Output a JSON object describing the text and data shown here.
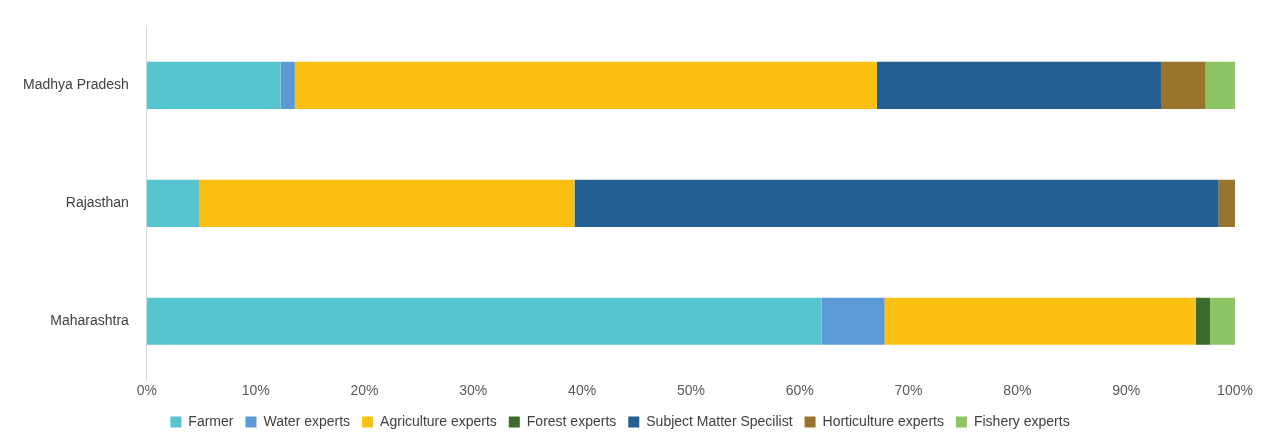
{
  "chart_data": {
    "type": "bar",
    "orientation": "horizontal",
    "stacked": true,
    "categories": [
      "Madhya Pradesh",
      "Rajasthan",
      "Maharashtra"
    ],
    "series": [
      {
        "name": "Farmer",
        "color": "#56c5d0",
        "values": [
          12.3,
          4.8,
          62.0
        ]
      },
      {
        "name": "Water experts",
        "color": "#5b9bd5",
        "values": [
          1.3,
          0,
          5.8
        ]
      },
      {
        "name": "Agriculture experts",
        "color": "#fbc012",
        "values": [
          53.5,
          34.5,
          28.6
        ]
      },
      {
        "name": "Forest experts",
        "color": "#3d6b2e",
        "values": [
          0,
          0,
          1.3
        ]
      },
      {
        "name": "Subject Matter Specilist",
        "color": "#255e91",
        "values": [
          26.1,
          59.2,
          0
        ]
      },
      {
        "name": "Horticulture experts",
        "color": "#9a742c",
        "values": [
          4.1,
          1.5,
          0
        ]
      },
      {
        "name": "Fishery experts",
        "color": "#8dc565",
        "values": [
          2.7,
          0,
          2.3
        ]
      }
    ],
    "xlim": [
      0,
      100
    ],
    "xticks": [
      {
        "value": 0,
        "label": "0%"
      },
      {
        "value": 10,
        "label": "10%"
      },
      {
        "value": 20,
        "label": "20%"
      },
      {
        "value": 30,
        "label": "30%"
      },
      {
        "value": 40,
        "label": "40%"
      },
      {
        "value": 50,
        "label": "50%"
      },
      {
        "value": 60,
        "label": "60%"
      },
      {
        "value": 70,
        "label": "70%"
      },
      {
        "value": 80,
        "label": "80%"
      },
      {
        "value": 90,
        "label": "90%"
      },
      {
        "value": 100,
        "label": "100%"
      }
    ],
    "grid": false,
    "legend": "bottom"
  }
}
